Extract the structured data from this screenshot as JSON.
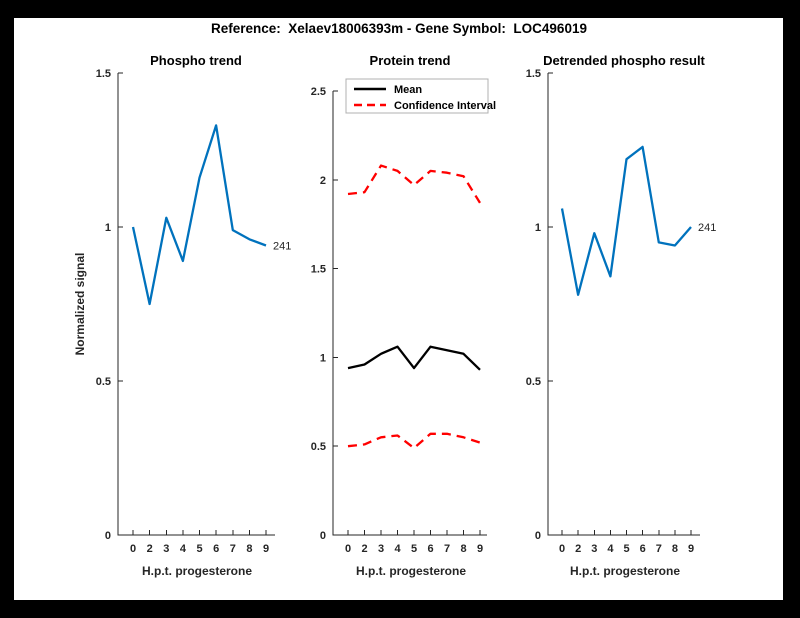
{
  "figure": {
    "title": "Reference:  Xelaev18006393m - Gene Symbol:  LOC496019"
  },
  "chart_data": [
    {
      "type": "line",
      "title": "Phospho trend",
      "xlabel": "H.p.t. progesterone",
      "ylabel": "Normalized signal",
      "x": [
        0,
        2,
        3,
        4,
        5,
        6,
        7,
        8,
        9
      ],
      "x_tick_labels": [
        "0",
        "2",
        "3",
        "4",
        "5",
        "6",
        "7",
        "8",
        "9"
      ],
      "ylim": [
        0,
        1.5
      ],
      "yticks": [
        0,
        0.5,
        1,
        1.5
      ],
      "ytick_labels": [
        "0",
        "0.5",
        "1",
        "1.5"
      ],
      "grid": false,
      "legend": null,
      "series": [
        {
          "name": "phospho-signal",
          "color": "#0072BD",
          "style": "solid",
          "values": [
            1.0,
            0.75,
            1.03,
            0.89,
            1.16,
            1.33,
            0.99,
            0.96,
            0.94
          ]
        }
      ],
      "end_label": "241"
    },
    {
      "type": "line",
      "title": "Protein trend",
      "xlabel": "H.p.t. progesterone",
      "ylabel": "",
      "x": [
        0,
        2,
        3,
        4,
        5,
        6,
        7,
        8,
        9
      ],
      "x_tick_labels": [
        "0",
        "2",
        "3",
        "4",
        "5",
        "6",
        "7",
        "8",
        "9"
      ],
      "ylim": [
        0,
        2.5
      ],
      "yticks": [
        0,
        0.5,
        1,
        1.5,
        2,
        2.5
      ],
      "ytick_labels": [
        "0",
        "0.5",
        "1",
        "1.5",
        "2",
        "2.5"
      ],
      "grid": false,
      "legend": {
        "position": "northwest",
        "entries": [
          {
            "label": "Mean",
            "color": "#000000",
            "style": "solid"
          },
          {
            "label": "Confidence Interval",
            "color": "#ff0000",
            "style": "dashed"
          }
        ]
      },
      "series": [
        {
          "name": "Mean",
          "color": "#000000",
          "style": "solid",
          "values": [
            0.94,
            0.96,
            1.02,
            1.06,
            0.94,
            1.06,
            1.04,
            1.02,
            0.93
          ]
        },
        {
          "name": "Confidence Interval upper",
          "color": "#ff0000",
          "style": "dashed",
          "values": [
            1.92,
            1.93,
            2.08,
            2.05,
            1.97,
            2.05,
            2.04,
            2.02,
            1.87
          ]
        },
        {
          "name": "Confidence Interval lower",
          "color": "#ff0000",
          "style": "dashed",
          "values": [
            0.5,
            0.51,
            0.55,
            0.56,
            0.49,
            0.57,
            0.57,
            0.55,
            0.52
          ]
        }
      ],
      "end_label": null
    },
    {
      "type": "line",
      "title": "Detrended phospho result",
      "xlabel": "H.p.t. progesterone",
      "ylabel": "",
      "x": [
        0,
        2,
        3,
        4,
        5,
        6,
        7,
        8,
        9
      ],
      "x_tick_labels": [
        "0",
        "2",
        "3",
        "4",
        "5",
        "6",
        "7",
        "8",
        "9"
      ],
      "ylim": [
        0,
        1.5
      ],
      "yticks": [
        0,
        0.5,
        1,
        1.5
      ],
      "ytick_labels": [
        "0",
        "0.5",
        "1",
        "1.5"
      ],
      "grid": false,
      "legend": null,
      "series": [
        {
          "name": "detrended-phospho-signal",
          "color": "#0072BD",
          "style": "solid",
          "values": [
            1.06,
            0.78,
            0.98,
            0.84,
            1.22,
            1.26,
            0.95,
            0.94,
            1.0
          ]
        }
      ],
      "end_label": "241"
    }
  ],
  "colors": {
    "line_blue": "#0072BD",
    "ci_red": "#ff0000",
    "axis": "#262626",
    "plot_background": "#ffffff",
    "frame": "#000000"
  }
}
